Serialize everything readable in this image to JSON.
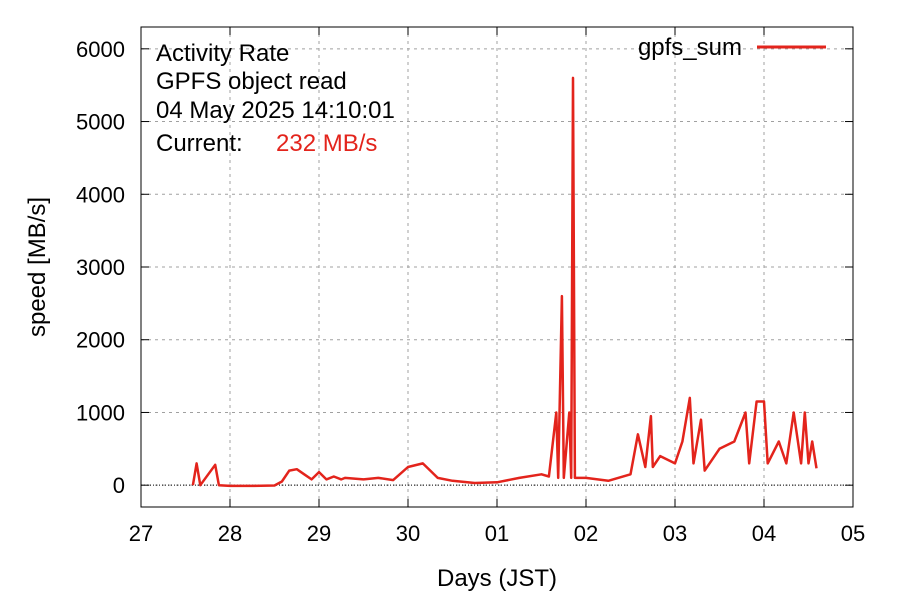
{
  "annotations": {
    "line1": "Activity Rate",
    "line2": "GPFS object read",
    "line3": "04 May 2025 14:10:01",
    "current_label": "Current:",
    "current_value": "232 MB/s"
  },
  "colors": {
    "series": "#e3241c",
    "grid": "#a0a0a0",
    "frame": "#000000"
  },
  "chart_data": {
    "type": "line",
    "xlabel": "Days (JST)",
    "ylabel": "speed [MB/s]",
    "xlim": [
      "2025-04-27",
      "2025-05-05"
    ],
    "ylim": [
      -300,
      6300
    ],
    "grid": true,
    "legend": "top-right",
    "x_ticks": [
      "27",
      "28",
      "29",
      "30",
      "01",
      "02",
      "03",
      "04",
      "05"
    ],
    "y_ticks": [
      0,
      1000,
      2000,
      3000,
      4000,
      5000,
      6000
    ],
    "series": [
      {
        "name": "gpfs_sum",
        "points": [
          [
            "2025-04-27 14:00",
            0
          ],
          [
            "2025-04-27 15:00",
            300
          ],
          [
            "2025-04-27 16:00",
            0
          ],
          [
            "2025-04-27 20:00",
            280
          ],
          [
            "2025-04-27 21:00",
            0
          ],
          [
            "2025-04-28 00:00",
            -10
          ],
          [
            "2025-04-28 06:00",
            -10
          ],
          [
            "2025-04-28 12:00",
            -5
          ],
          [
            "2025-04-28 14:00",
            50
          ],
          [
            "2025-04-28 16:00",
            200
          ],
          [
            "2025-04-28 18:00",
            220
          ],
          [
            "2025-04-28 20:00",
            150
          ],
          [
            "2025-04-28 22:00",
            80
          ],
          [
            "2025-04-29 00:00",
            180
          ],
          [
            "2025-04-29 02:00",
            80
          ],
          [
            "2025-04-29 04:00",
            120
          ],
          [
            "2025-04-29 06:00",
            80
          ],
          [
            "2025-04-29 07:00",
            100
          ],
          [
            "2025-04-29 12:00",
            80
          ],
          [
            "2025-04-29 16:00",
            100
          ],
          [
            "2025-04-29 20:00",
            70
          ],
          [
            "2025-04-30 00:00",
            250
          ],
          [
            "2025-04-30 04:00",
            300
          ],
          [
            "2025-04-30 06:00",
            200
          ],
          [
            "2025-04-30 08:00",
            100
          ],
          [
            "2025-04-30 12:00",
            60
          ],
          [
            "2025-04-30 18:00",
            30
          ],
          [
            "2025-05-01 00:00",
            40
          ],
          [
            "2025-05-01 06:00",
            100
          ],
          [
            "2025-05-01 12:00",
            150
          ],
          [
            "2025-05-01 14:00",
            120
          ],
          [
            "2025-05-01 16:00",
            1000
          ],
          [
            "2025-05-01 16:30",
            100
          ],
          [
            "2025-05-01 17:30",
            2600
          ],
          [
            "2025-05-01 18:00",
            100
          ],
          [
            "2025-05-01 19:30",
            1000
          ],
          [
            "2025-05-01 20:00",
            100
          ],
          [
            "2025-05-01 20:30",
            5600
          ],
          [
            "2025-05-01 21:00",
            100
          ],
          [
            "2025-05-02 00:00",
            100
          ],
          [
            "2025-05-02 06:00",
            60
          ],
          [
            "2025-05-02 12:00",
            150
          ],
          [
            "2025-05-02 14:00",
            700
          ],
          [
            "2025-05-02 16:00",
            250
          ],
          [
            "2025-05-02 17:30",
            950
          ],
          [
            "2025-05-02 18:00",
            250
          ],
          [
            "2025-05-02 20:00",
            400
          ],
          [
            "2025-05-02 22:00",
            350
          ],
          [
            "2025-05-03 00:00",
            300
          ],
          [
            "2025-05-03 02:00",
            600
          ],
          [
            "2025-05-03 04:00",
            1200
          ],
          [
            "2025-05-03 05:00",
            300
          ],
          [
            "2025-05-03 07:00",
            900
          ],
          [
            "2025-05-03 08:00",
            200
          ],
          [
            "2025-05-03 12:00",
            500
          ],
          [
            "2025-05-03 16:00",
            600
          ],
          [
            "2025-05-03 19:00",
            1000
          ],
          [
            "2025-05-03 20:00",
            300
          ],
          [
            "2025-05-03 22:00",
            1150
          ],
          [
            "2025-05-04 00:00",
            1150
          ],
          [
            "2025-05-04 01:00",
            300
          ],
          [
            "2025-05-04 04:00",
            600
          ],
          [
            "2025-05-04 06:00",
            300
          ],
          [
            "2025-05-04 08:00",
            1000
          ],
          [
            "2025-05-04 10:00",
            300
          ],
          [
            "2025-05-04 11:00",
            1000
          ],
          [
            "2025-05-04 12:00",
            300
          ],
          [
            "2025-05-04 13:00",
            600
          ],
          [
            "2025-05-04 14:10",
            232
          ]
        ]
      }
    ]
  }
}
